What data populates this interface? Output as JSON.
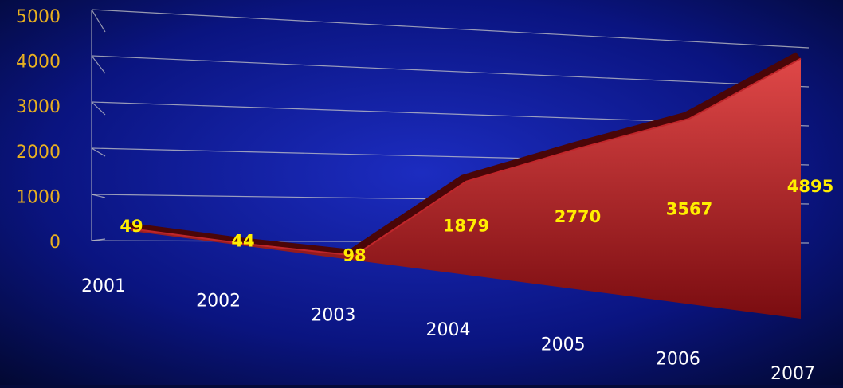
{
  "chart_data": {
    "type": "area",
    "categories": [
      "2001",
      "2002",
      "2003",
      "2004",
      "2005",
      "2006",
      "2007"
    ],
    "values": [
      49,
      44,
      98,
      1879,
      2770,
      3567,
      4895
    ],
    "color": "#c0262a",
    "ylim": [
      0,
      5000
    ],
    "yticks": [
      0,
      1000,
      2000,
      3000,
      4000,
      5000
    ],
    "grid": true
  }
}
